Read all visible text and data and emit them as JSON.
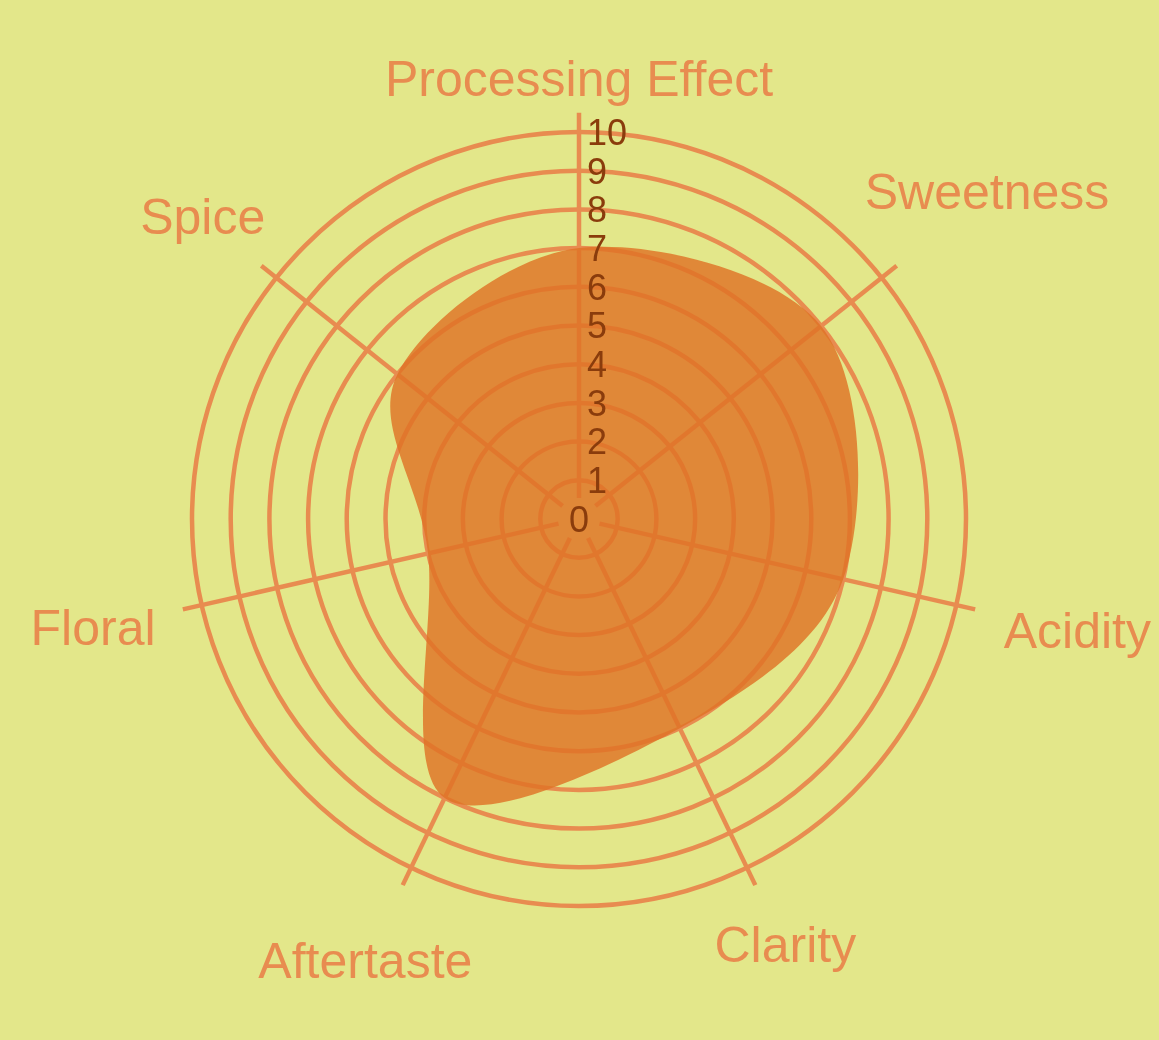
{
  "chart_data": {
    "type": "radar",
    "categories": [
      "Processing Effect",
      "Sweetness",
      "Acidity",
      "Clarity",
      "Aftertaste",
      "Floral",
      "Spice"
    ],
    "series": [
      {
        "color": "#df7326",
        "values": [
          7,
          8,
          7,
          6,
          8,
          4,
          6
        ]
      }
    ],
    "ylim": [
      0,
      10
    ],
    "yticks": [
      0,
      1,
      2,
      3,
      4,
      5,
      6,
      7,
      8,
      9,
      10
    ],
    "grid": true
  }
}
